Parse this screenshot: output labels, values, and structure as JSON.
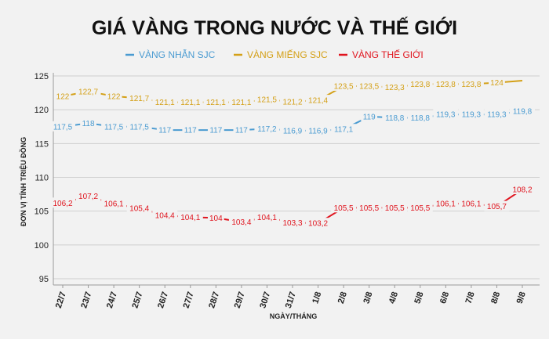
{
  "chart_data": {
    "type": "line",
    "title": "GIÁ VÀNG TRONG NƯỚC VÀ THẾ GIỚI",
    "xlabel": "NGÀY/THÁNG",
    "ylabel": "ĐƠN VỊ TÍNH TRIỆU ĐỒNG",
    "ylim": [
      95,
      125
    ],
    "yticks": [
      95,
      100,
      105,
      110,
      115,
      120,
      125
    ],
    "grid": true,
    "legend_position": "top-center",
    "categories": [
      "22/7",
      "23/7",
      "24/7",
      "25/7",
      "26/7",
      "27/7",
      "28/7",
      "29/7",
      "30/7",
      "31/7",
      "1/8",
      "2/8",
      "3/8",
      "4/8",
      "5/8",
      "6/8",
      "7/8",
      "8/8",
      "9/8"
    ],
    "series": [
      {
        "name": "VÀNG NHẪN SJC",
        "color": "#4a9bd1",
        "values": [
          117.5,
          118,
          117.5,
          117.5,
          117,
          117,
          117,
          117,
          117.2,
          116.9,
          116.9,
          117.1,
          119,
          118.8,
          118.8,
          119.3,
          119.3,
          119.3,
          119.8
        ],
        "labels": [
          "117,5",
          "118",
          "117,5",
          "117,5",
          "117",
          "117",
          "117",
          "117",
          "117,2",
          "116,9",
          "116,9",
          "117,1",
          "119",
          "118,8",
          "118,8",
          "119,3",
          "119,3",
          "119,3",
          "119,8"
        ]
      },
      {
        "name": "VÀNG MIẾNG SJC",
        "color": "#d4a017",
        "values": [
          122,
          122.7,
          122,
          121.7,
          121.1,
          121.1,
          121.1,
          121.1,
          121.5,
          121.2,
          121.4,
          123.5,
          123.5,
          123.3,
          123.8,
          123.8,
          123.8,
          124,
          124.3
        ],
        "labels": [
          "122",
          "122,7",
          "122",
          "121,7",
          "121,1",
          "121,1",
          "121,1",
          "121,1",
          "121,5",
          "121,2",
          "121,4",
          "123,5",
          "123,5",
          "123,3",
          "123,8",
          "123,8",
          "123,8",
          "124",
          ""
        ]
      },
      {
        "name": "VÀNG THẾ GIỚI",
        "color": "#e0141e",
        "values": [
          106.2,
          107.2,
          106.1,
          105.4,
          104.4,
          104.1,
          104,
          103.4,
          104.1,
          103.3,
          103.2,
          105.5,
          105.5,
          105.5,
          105.5,
          106.1,
          106.1,
          105.7,
          108.2
        ],
        "labels": [
          "106,2",
          "107,2",
          "106,1",
          "105,4",
          "104,4",
          "104,1",
          "104",
          "103,4",
          "104,1",
          "103,3",
          "103,2",
          "105,5",
          "105,5",
          "105,5",
          "105,5",
          "106,1",
          "106,1",
          "105,7",
          "108,2"
        ]
      }
    ]
  }
}
